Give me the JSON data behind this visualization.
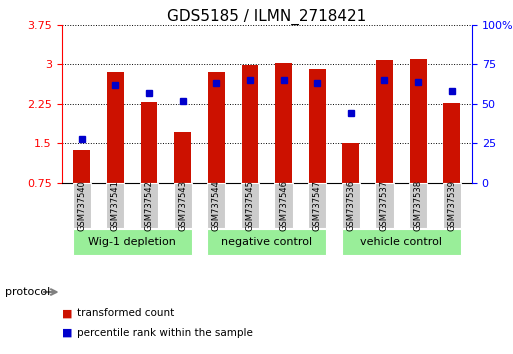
{
  "title": "GDS5185 / ILMN_2718421",
  "samples": [
    "GSM737540",
    "GSM737541",
    "GSM737542",
    "GSM737543",
    "GSM737544",
    "GSM737545",
    "GSM737546",
    "GSM737547",
    "GSM737536",
    "GSM737537",
    "GSM737538",
    "GSM737539"
  ],
  "transformed_count": [
    1.38,
    2.85,
    2.28,
    1.72,
    2.85,
    2.98,
    3.02,
    2.92,
    1.5,
    3.08,
    3.1,
    2.27
  ],
  "percentile_rank": [
    28,
    62,
    57,
    52,
    63,
    65,
    65,
    63,
    44,
    65,
    64,
    58
  ],
  "groups": [
    {
      "label": "Wig-1 depletion",
      "start": 0,
      "end": 4
    },
    {
      "label": "negative control",
      "start": 4,
      "end": 8
    },
    {
      "label": "vehicle control",
      "start": 8,
      "end": 12
    }
  ],
  "bar_color": "#cc1100",
  "dot_color": "#0000cc",
  "bar_bottom": 0.75,
  "ylim_left": [
    0.75,
    3.75
  ],
  "ylim_right": [
    0,
    100
  ],
  "yticks_left": [
    0.75,
    1.5,
    2.25,
    3.0,
    3.75
  ],
  "yticks_right": [
    0,
    25,
    50,
    75,
    100
  ],
  "ytick_labels_left": [
    "0.75",
    "1.5",
    "2.25",
    "3",
    "3.75"
  ],
  "ytick_labels_right": [
    "0",
    "25",
    "50",
    "75",
    "100%"
  ],
  "group_bg_color": "#99ee99",
  "sample_bg_color": "#cccccc",
  "legend_items": [
    {
      "label": "transformed count",
      "color": "#cc1100"
    },
    {
      "label": "percentile rank within the sample",
      "color": "#0000cc"
    }
  ],
  "protocol_label": "protocol",
  "title_fontsize": 11,
  "tick_fontsize": 8,
  "label_fontsize": 6,
  "group_fontsize": 8,
  "bar_width": 0.5
}
